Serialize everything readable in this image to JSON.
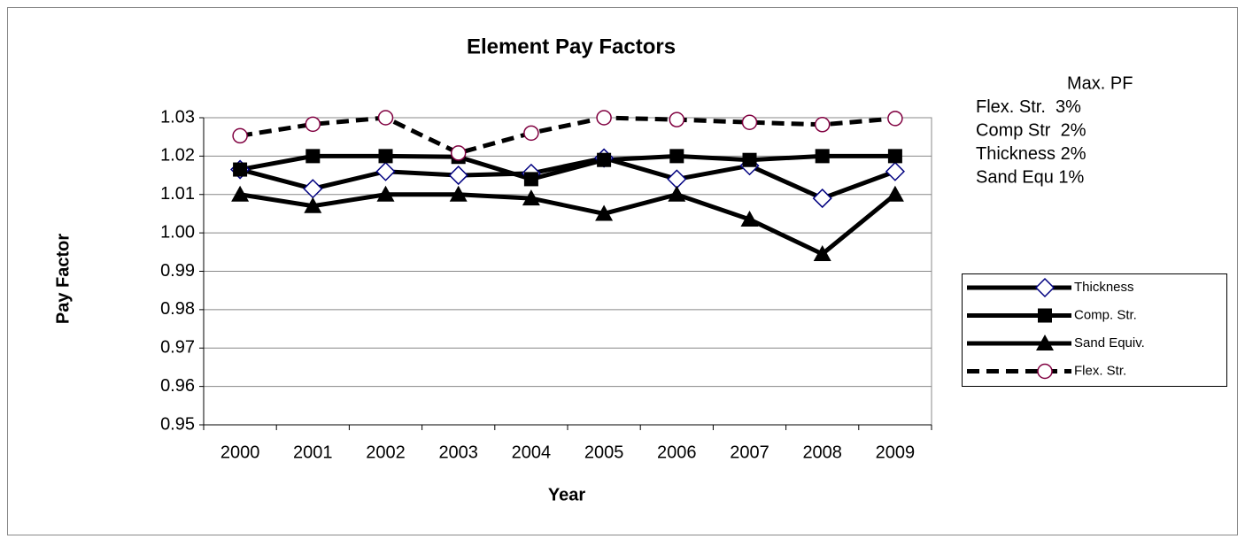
{
  "chart_data": {
    "type": "line",
    "title": "Element Pay Factors",
    "x_label": "Year",
    "y_label": "Pay Factor",
    "categories": [
      "2000",
      "2001",
      "2002",
      "2003",
      "2004",
      "2005",
      "2006",
      "2007",
      "2008",
      "2009"
    ],
    "series": [
      {
        "name": "Thickness",
        "color": "#000000",
        "marker": "diamond",
        "marker_color": "#000080",
        "dash": false,
        "values": [
          1.0165,
          1.0115,
          1.016,
          1.015,
          1.0155,
          1.0195,
          1.014,
          1.0175,
          1.009,
          1.016
        ]
      },
      {
        "name": "Comp. Str.",
        "color": "#000000",
        "marker": "square",
        "marker_color": "#000000",
        "dash": false,
        "values": [
          1.0165,
          1.02,
          1.02,
          1.0198,
          1.014,
          1.019,
          1.02,
          1.019,
          1.02,
          1.02
        ]
      },
      {
        "name": "Sand Equiv.",
        "color": "#000000",
        "marker": "triangle",
        "marker_color": "#000000",
        "dash": false,
        "values": [
          1.01,
          1.007,
          1.01,
          1.01,
          1.009,
          1.005,
          1.01,
          1.0035,
          0.9945,
          1.01
        ]
      },
      {
        "name": "Flex. Str.",
        "color": "#000000",
        "marker": "circle",
        "marker_color": "#800040",
        "dash": true,
        "values": [
          1.0253,
          1.0283,
          1.03,
          1.0208,
          1.026,
          1.03,
          1.0295,
          1.0288,
          1.0282,
          1.0298
        ]
      }
    ],
    "ylim": [
      0.95,
      1.03
    ],
    "yticks": [
      0.95,
      0.96,
      0.97,
      0.98,
      0.99,
      {
        "value": 1,
        "label": "1.00"
      },
      1.01,
      1.02,
      1.03
    ],
    "grid": true,
    "legend": "right",
    "annotation": [
      "Max. PF",
      "Flex. Str.  3%",
      "Comp Str  2%",
      "Thickness 2%",
      "Sand Equ 1%"
    ]
  }
}
